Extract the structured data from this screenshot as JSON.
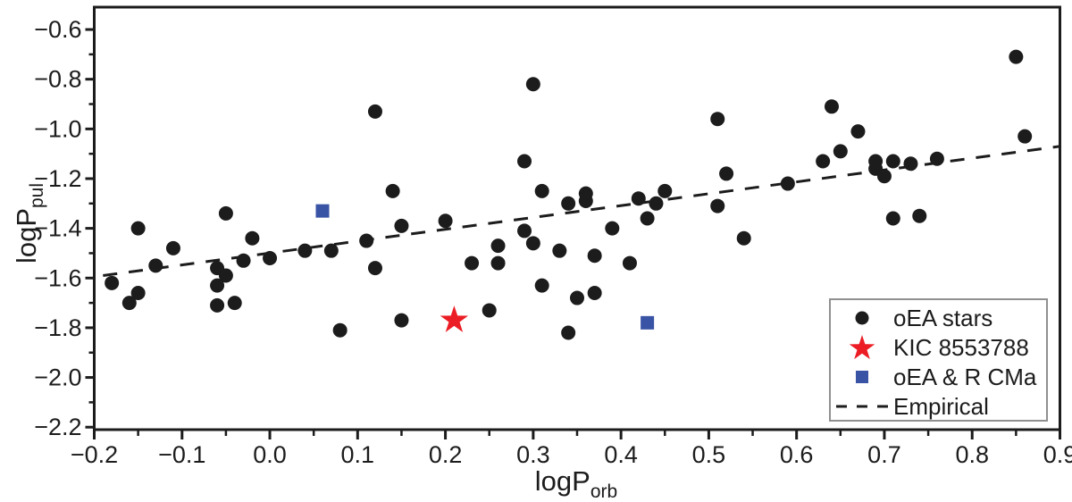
{
  "chart_data": {
    "type": "scatter",
    "title": "",
    "xlabel": {
      "base": "logP",
      "sub": "orb"
    },
    "ylabel": {
      "base": "logP",
      "sub": "pul"
    },
    "xlim": [
      -0.2,
      0.9
    ],
    "ylim": [
      -2.21,
      -0.51
    ],
    "grid": false,
    "axis_color": "#1c1c1c",
    "background": "#ffffff",
    "x_ticks": {
      "values": [
        -0.2,
        -0.1,
        0.0,
        0.1,
        0.2,
        0.3,
        0.4,
        0.5,
        0.6,
        0.7,
        0.8,
        0.9
      ],
      "labels": [
        "−0.2",
        "−0.1",
        "0.0",
        "0.1",
        "0.2",
        "0.3",
        "0.4",
        "0.5",
        "0.6",
        "0.7",
        "0.8",
        "0.9"
      ],
      "minor": [
        -0.15,
        -0.05,
        0.05,
        0.15,
        0.25,
        0.35,
        0.45,
        0.55,
        0.65,
        0.75,
        0.85
      ]
    },
    "y_ticks": {
      "values": [
        -0.6,
        -0.8,
        -1.0,
        -1.2,
        -1.4,
        -1.6,
        -1.8,
        -2.0,
        -2.2
      ],
      "labels": [
        "−0.6",
        "−0.8",
        "−1.0",
        "−1.2",
        "−1.4",
        "−1.6",
        "−1.8",
        "−2.0",
        "−2.2"
      ],
      "minor": [
        -0.7,
        -0.9,
        -1.1,
        -1.3,
        -1.5,
        -1.7,
        -1.9,
        -2.1
      ]
    },
    "series": [
      {
        "name": "oEA stars",
        "marker": "circle",
        "color": "#1c1c1c",
        "size": 8,
        "points": [
          [
            -0.18,
            -1.62
          ],
          [
            -0.16,
            -1.7
          ],
          [
            -0.15,
            -1.66
          ],
          [
            -0.15,
            -1.4
          ],
          [
            -0.13,
            -1.55
          ],
          [
            -0.11,
            -1.48
          ],
          [
            -0.06,
            -1.56
          ],
          [
            -0.06,
            -1.63
          ],
          [
            -0.06,
            -1.71
          ],
          [
            -0.05,
            -1.59
          ],
          [
            -0.05,
            -1.34
          ],
          [
            -0.04,
            -1.7
          ],
          [
            -0.03,
            -1.53
          ],
          [
            -0.02,
            -1.44
          ],
          [
            0.0,
            -1.52
          ],
          [
            0.04,
            -1.49
          ],
          [
            0.07,
            -1.49
          ],
          [
            0.08,
            -1.81
          ],
          [
            0.11,
            -1.45
          ],
          [
            0.12,
            -0.93
          ],
          [
            0.12,
            -1.56
          ],
          [
            0.14,
            -1.25
          ],
          [
            0.15,
            -1.39
          ],
          [
            0.15,
            -1.77
          ],
          [
            0.2,
            -1.37
          ],
          [
            0.23,
            -1.54
          ],
          [
            0.25,
            -1.73
          ],
          [
            0.26,
            -1.47
          ],
          [
            0.26,
            -1.54
          ],
          [
            0.29,
            -1.13
          ],
          [
            0.29,
            -1.41
          ],
          [
            0.3,
            -0.82
          ],
          [
            0.3,
            -1.46
          ],
          [
            0.31,
            -1.25
          ],
          [
            0.31,
            -1.63
          ],
          [
            0.33,
            -1.49
          ],
          [
            0.34,
            -1.3
          ],
          [
            0.34,
            -1.82
          ],
          [
            0.35,
            -1.68
          ],
          [
            0.36,
            -1.26
          ],
          [
            0.36,
            -1.29
          ],
          [
            0.37,
            -1.51
          ],
          [
            0.37,
            -1.66
          ],
          [
            0.39,
            -1.4
          ],
          [
            0.41,
            -1.54
          ],
          [
            0.42,
            -1.28
          ],
          [
            0.43,
            -1.36
          ],
          [
            0.44,
            -1.3
          ],
          [
            0.45,
            -1.25
          ],
          [
            0.51,
            -0.96
          ],
          [
            0.51,
            -1.31
          ],
          [
            0.52,
            -1.18
          ],
          [
            0.54,
            -1.44
          ],
          [
            0.59,
            -1.22
          ],
          [
            0.63,
            -1.13
          ],
          [
            0.64,
            -0.91
          ],
          [
            0.65,
            -1.09
          ],
          [
            0.67,
            -1.01
          ],
          [
            0.69,
            -1.13
          ],
          [
            0.69,
            -1.16
          ],
          [
            0.7,
            -1.19
          ],
          [
            0.71,
            -1.13
          ],
          [
            0.71,
            -1.36
          ],
          [
            0.73,
            -1.14
          ],
          [
            0.74,
            -1.35
          ],
          [
            0.76,
            -1.12
          ],
          [
            0.85,
            -0.71
          ],
          [
            0.86,
            -1.03
          ]
        ]
      },
      {
        "name": "KIC 8553788",
        "marker": "star",
        "color": "#ec1c24",
        "size": 16.5,
        "points": [
          [
            0.21,
            -1.77
          ]
        ]
      },
      {
        "name": "oEA & R CMa",
        "marker": "square",
        "color": "#3a54a5",
        "size": 15,
        "points": [
          [
            0.06,
            -1.33
          ],
          [
            0.43,
            -1.78
          ]
        ]
      },
      {
        "name": "Empirical",
        "marker": "dashed-line",
        "color": "#1c1c1c",
        "line": [
          [
            -0.19,
            -1.59
          ],
          [
            0.9,
            -1.07
          ]
        ]
      }
    ],
    "legend": {
      "position": "bottom-right",
      "entries": [
        "oEA stars",
        "KIC 8553788",
        "oEA & R CMa",
        "Empirical"
      ]
    }
  }
}
